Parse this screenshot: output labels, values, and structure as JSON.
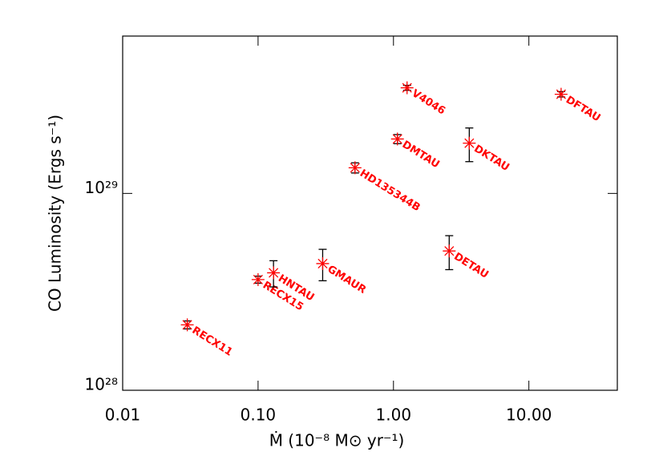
{
  "chart_data": {
    "type": "scatter",
    "x_label": "Ṁ (10⁻⁸ M⊙ yr⁻¹)",
    "y_label": "CO Luminosity (Ergs s⁻¹)",
    "x_scale": "log",
    "y_scale": "log",
    "xlim": [
      0.01,
      45
    ],
    "ylim": [
      1e+28,
      6.3e+29
    ],
    "xticks": [
      {
        "value": 0.01,
        "label": "0.01"
      },
      {
        "value": 0.1,
        "label": "0.10"
      },
      {
        "value": 1,
        "label": "1.00"
      },
      {
        "value": 10,
        "label": "10.00"
      }
    ],
    "yticks": [
      {
        "value": 1e+28,
        "label": "10²⁸"
      },
      {
        "value": 1e+29,
        "label": "10²⁹"
      }
    ],
    "color": "#ff0000",
    "error_color": "#000000",
    "point_labels": [
      "RECX11",
      "RECX15",
      "HNTAU",
      "GMAUR",
      "HD135344B",
      "DMTAU",
      "V4046",
      "DETAU",
      "DKTAU",
      "DFTAU"
    ],
    "x": [
      0.03,
      0.1,
      0.13,
      0.3,
      0.52,
      1.07,
      1.26,
      2.58,
      3.63,
      17.3
    ],
    "values": [
      2.15e+28,
      3.65e+28,
      3.95e+28,
      4.4e+28,
      1.35e+29,
      1.89e+29,
      3.44e+29,
      5.1e+28,
      1.8e+29,
      3.19e+29
    ],
    "errors": [
      1e+27,
      1.5e+27,
      6e+27,
      8e+27,
      8e+27,
      1e+28,
      1e+28,
      1e+28,
      3.5e+28,
      1e+28
    ]
  }
}
